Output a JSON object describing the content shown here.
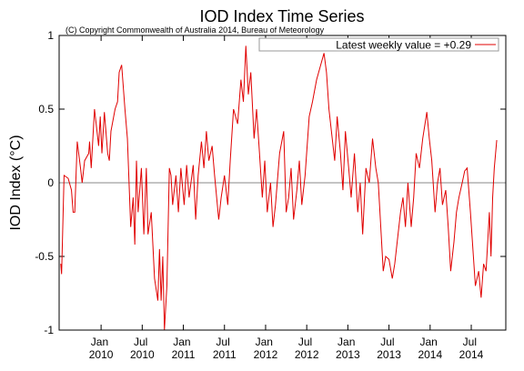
{
  "chart_data": {
    "type": "line",
    "title": "IOD Index Time Series",
    "subtitle": "(C) Copyright Commonwealth of Australia 2014, Bureau of Meteorology",
    "y_label": "IOD Index (°C)",
    "legend_position": "upper right",
    "zero_line": true,
    "xlim": [
      2009.49,
      2014.92
    ],
    "xticks": [
      {
        "value": 2010,
        "label": "Jan 2010"
      },
      {
        "value": 2010.5,
        "label": "Jul 2010"
      },
      {
        "value": 2011,
        "label": "Jan 2011"
      },
      {
        "value": 2011.5,
        "label": "Jul 2011"
      },
      {
        "value": 2012,
        "label": "Jan 2012"
      },
      {
        "value": 2012.5,
        "label": "Jul 2012"
      },
      {
        "value": 2013,
        "label": "Jan 2013"
      },
      {
        "value": 2013.5,
        "label": "Jul 2013"
      },
      {
        "value": 2014,
        "label": "Jan 2014"
      },
      {
        "value": 2014.5,
        "label": "Jul 2014"
      }
    ],
    "ylim": [
      -1,
      1
    ],
    "yticks": [
      -1,
      -0.5,
      0,
      0.5,
      1
    ],
    "x": [
      2009.51,
      2009.52,
      2009.55,
      2009.6,
      2009.64,
      2009.66,
      2009.68,
      2009.71,
      2009.75,
      2009.77,
      2009.8,
      2009.85,
      2009.86,
      2009.88,
      2009.92,
      2009.94,
      2009.97,
      2009.99,
      2010.01,
      2010.04,
      2010.08,
      2010.1,
      2010.12,
      2010.17,
      2010.2,
      2010.22,
      2010.25,
      2010.29,
      2010.32,
      2010.36,
      2010.39,
      2010.41,
      2010.43,
      2010.45,
      2010.49,
      2010.52,
      2010.55,
      2010.57,
      2010.61,
      2010.65,
      2010.69,
      2010.71,
      2010.73,
      2010.75,
      2010.77,
      2010.8,
      2010.83,
      2010.85,
      2010.87,
      2010.91,
      2010.94,
      2010.97,
      2011.01,
      2011.04,
      2011.07,
      2011.12,
      2011.15,
      2011.18,
      2011.22,
      2011.25,
      2011.28,
      2011.31,
      2011.35,
      2011.38,
      2011.43,
      2011.46,
      2011.5,
      2011.54,
      2011.57,
      2011.61,
      2011.66,
      2011.7,
      2011.73,
      2011.76,
      2011.79,
      2011.82,
      2011.86,
      2011.89,
      2011.92,
      2011.96,
      2011.99,
      2012.02,
      2012.06,
      2012.09,
      2012.12,
      2012.17,
      2012.22,
      2012.25,
      2012.28,
      2012.31,
      2012.34,
      2012.38,
      2012.41,
      2012.44,
      2012.48,
      2012.53,
      2012.57,
      2012.62,
      2012.67,
      2012.71,
      2012.74,
      2012.77,
      2012.81,
      2012.84,
      2012.87,
      2012.91,
      2012.94,
      2012.97,
      2013.01,
      2013.04,
      2013.08,
      2013.12,
      2013.15,
      2013.18,
      2013.22,
      2013.26,
      2013.3,
      2013.34,
      2013.37,
      2013.4,
      2013.43,
      2013.46,
      2013.5,
      2013.54,
      2013.57,
      2013.6,
      2013.64,
      2013.67,
      2013.7,
      2013.73,
      2013.77,
      2013.8,
      2013.83,
      2013.87,
      2013.91,
      2013.96,
      2013.99,
      2014.02,
      2014.06,
      2014.09,
      2014.12,
      2014.15,
      2014.19,
      2014.22,
      2014.25,
      2014.29,
      2014.32,
      2014.35,
      2014.39,
      2014.42,
      2014.45,
      2014.49,
      2014.52,
      2014.55,
      2014.59,
      2014.62,
      2014.65,
      2014.68,
      2014.72,
      2014.74,
      2014.76,
      2014.78,
      2014.81
    ],
    "series": [
      {
        "name": "Latest weekly value = +0.29",
        "color": "#e00000",
        "values": [
          -0.55,
          -0.62,
          0.05,
          0.03,
          -0.05,
          -0.2,
          -0.2,
          0.28,
          0.1,
          0.0,
          0.15,
          0.2,
          0.28,
          0.1,
          0.5,
          0.4,
          0.25,
          0.45,
          0.2,
          0.48,
          0.2,
          0.15,
          0.35,
          0.5,
          0.55,
          0.75,
          0.8,
          0.5,
          0.3,
          -0.3,
          -0.1,
          -0.42,
          0.15,
          -0.2,
          0.1,
          -0.35,
          0.1,
          -0.35,
          -0.2,
          -0.65,
          -0.8,
          -0.45,
          -0.8,
          -0.5,
          -1.0,
          -0.7,
          0.1,
          0.05,
          -0.15,
          0.05,
          -0.2,
          0.1,
          -0.15,
          0.12,
          -0.1,
          0.12,
          -0.25,
          0.05,
          0.28,
          0.1,
          0.35,
          0.15,
          0.25,
          0.05,
          -0.25,
          -0.1,
          0.05,
          -0.15,
          0.15,
          0.5,
          0.4,
          0.7,
          0.55,
          0.93,
          0.6,
          0.75,
          0.3,
          0.5,
          0.25,
          -0.1,
          0.15,
          -0.2,
          0.0,
          -0.3,
          -0.15,
          0.2,
          0.35,
          -0.2,
          -0.1,
          0.1,
          -0.25,
          -0.05,
          0.15,
          -0.15,
          0.05,
          0.45,
          0.55,
          0.7,
          0.8,
          0.88,
          0.75,
          0.5,
          0.3,
          0.15,
          0.45,
          0.2,
          -0.05,
          0.35,
          0.1,
          -0.1,
          0.2,
          -0.2,
          0.0,
          -0.35,
          0.1,
          0.0,
          0.3,
          0.1,
          0.0,
          -0.3,
          -0.6,
          -0.5,
          -0.52,
          -0.65,
          -0.55,
          -0.4,
          -0.2,
          -0.1,
          -0.3,
          0.0,
          -0.3,
          -0.1,
          0.2,
          0.1,
          0.3,
          0.48,
          0.3,
          0.15,
          -0.2,
          0.0,
          0.1,
          -0.15,
          -0.05,
          -0.3,
          -0.6,
          -0.4,
          -0.2,
          -0.1,
          0.0,
          0.08,
          0.1,
          -0.2,
          -0.45,
          -0.7,
          -0.6,
          -0.78,
          -0.55,
          -0.6,
          -0.2,
          -0.5,
          -0.1,
          0.1,
          0.29
        ]
      }
    ]
  }
}
